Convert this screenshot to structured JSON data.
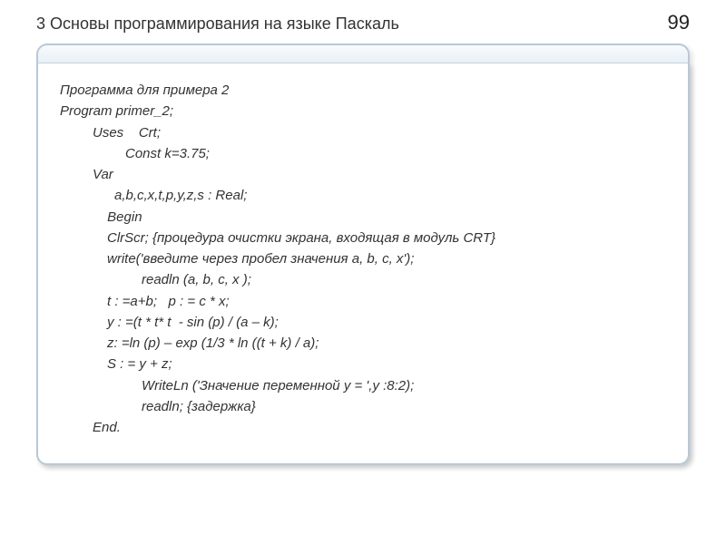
{
  "header": {
    "chapter_title": "3 Основы программирования на языке Паскаль",
    "page_number": "99"
  },
  "code": {
    "lines": [
      {
        "text": "Программа для примера 2",
        "indent": ""
      },
      {
        "text": "Program primer_2;",
        "indent": ""
      },
      {
        "text": "Uses    Crt;",
        "indent": "indent-1"
      },
      {
        "text": "Const k=3.75;",
        "indent": "indent-2"
      },
      {
        "text": "Var",
        "indent": "indent-1"
      },
      {
        "text": "a,b,c,x,t,p,y,z,s : Real;",
        "indent": "indent-2b"
      },
      {
        "text": " Begin",
        "indent": "indent-5"
      },
      {
        "text": "ClrScr; {процедура очистки экрана, входящая в модуль CRT}",
        "indent": "indent-3"
      },
      {
        "text": "write('введите через пробел значения a, b, c, x');",
        "indent": "indent-3"
      },
      {
        "text": "readln (a, b, c, x );",
        "indent": "indent-4"
      },
      {
        "text": "t : =a+b;   p : = c * x;",
        "indent": "indent-3"
      },
      {
        "text": "y : =(t * t* t  - sin (p) / (a – k);",
        "indent": "indent-3"
      },
      {
        "text": "z: =ln (p) – exp (1/3 * ln ((t + k) / a);",
        "indent": "indent-3"
      },
      {
        "text": "S : = y + z;",
        "indent": "indent-3"
      },
      {
        "text": "WriteLn ('Значение переменной у = ',у :8:2);",
        "indent": "indent-4"
      },
      {
        "text": "readln; {задержка}",
        "indent": "indent-4"
      },
      {
        "text": "End.",
        "indent": "indent-1"
      }
    ]
  },
  "styling": {
    "box_border_color": "#b8c8d8",
    "box_top_gradient_start": "#f8fbfd",
    "box_top_gradient_end": "#e8f0f6",
    "text_color": "#333",
    "background_color": "#ffffff",
    "shadow_color": "rgba(0,0,0,0.12)",
    "font_size_title": 18,
    "font_size_pagenum": 22,
    "font_size_code": 15,
    "line_height": 1.55
  }
}
